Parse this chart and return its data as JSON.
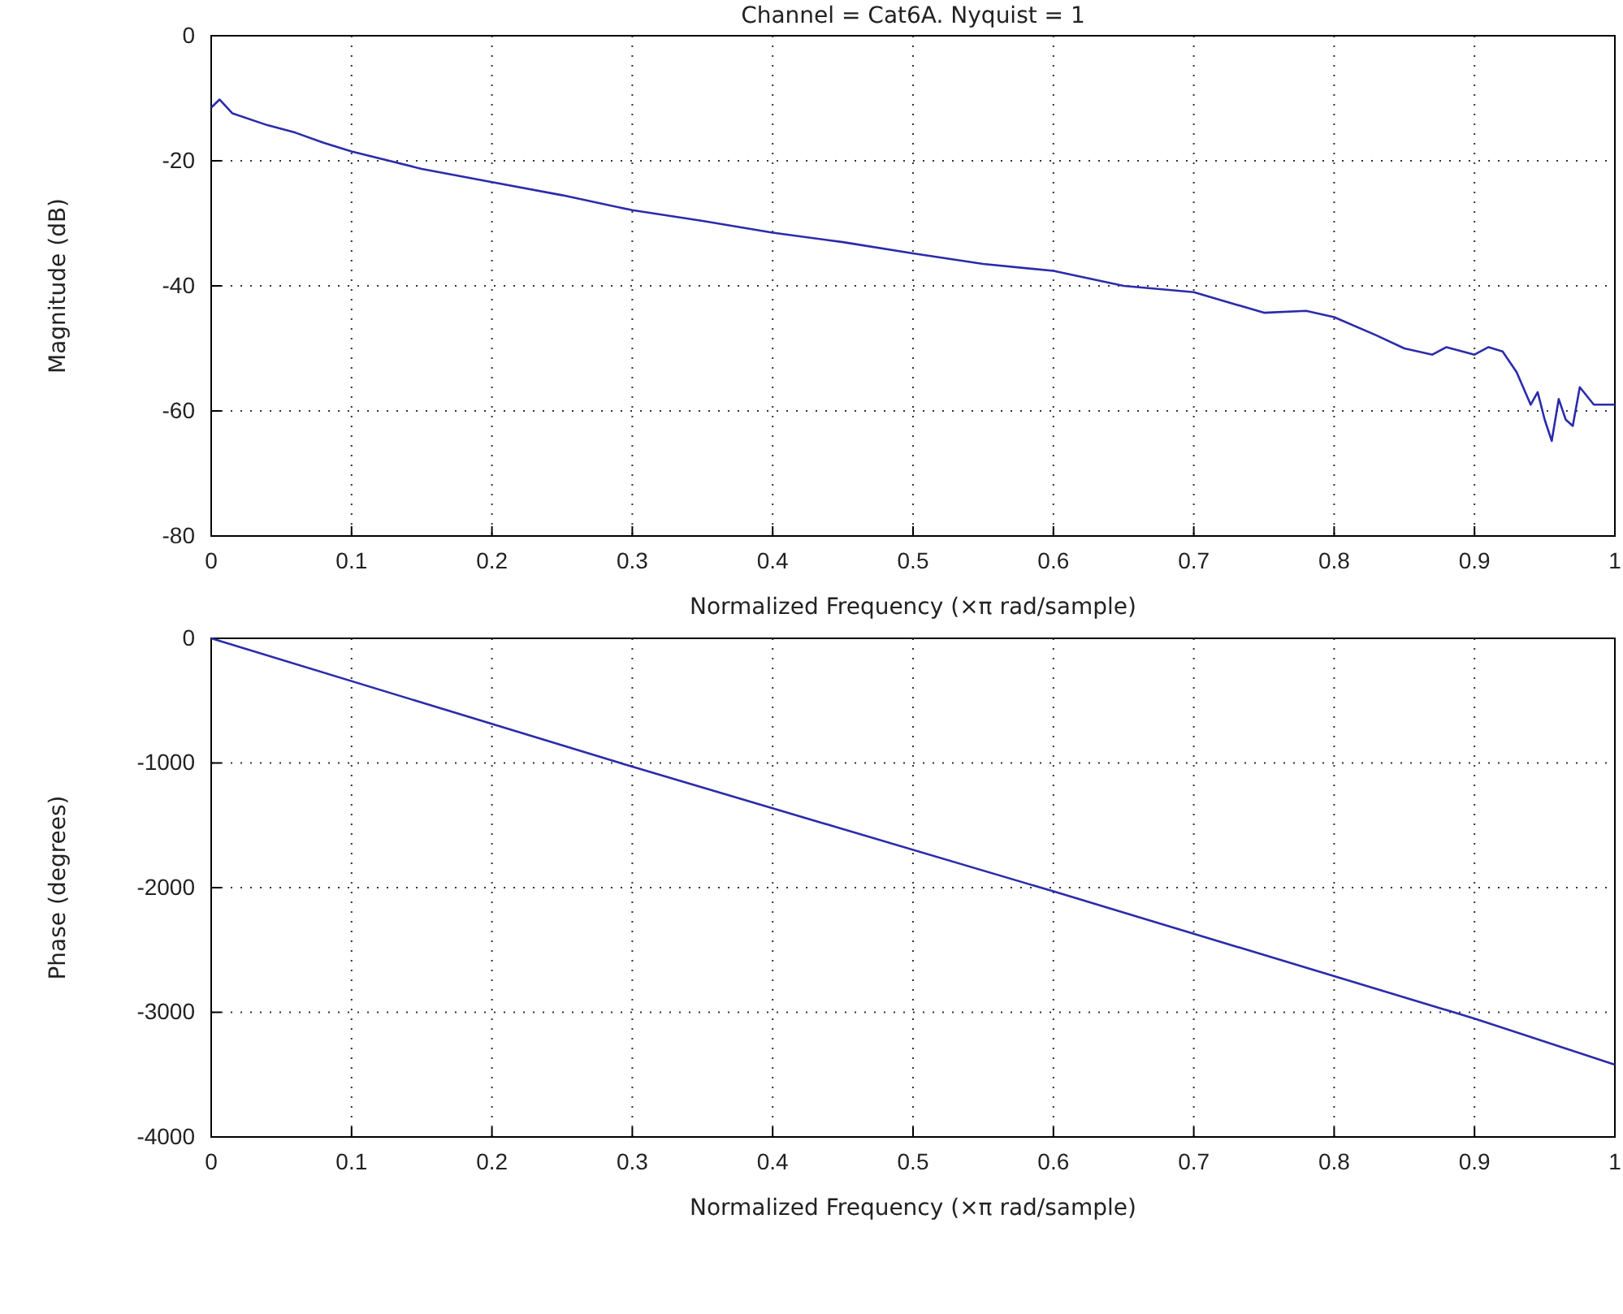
{
  "chart_data": [
    {
      "type": "line",
      "title": "Channel = Cat6A. Nyquist = 1",
      "xlabel": "Normalized Frequency  (×π rad/sample)",
      "ylabel": "Magnitude (dB)",
      "x": [
        0,
        0.006,
        0.015,
        0.04,
        0.06,
        0.08,
        0.1,
        0.15,
        0.2,
        0.25,
        0.3,
        0.35,
        0.4,
        0.45,
        0.5,
        0.55,
        0.6,
        0.65,
        0.7,
        0.75,
        0.78,
        0.8,
        0.83,
        0.85,
        0.87,
        0.88,
        0.9,
        0.91,
        0.92,
        0.93,
        0.94,
        0.945,
        0.95,
        0.955,
        0.96,
        0.965,
        0.97,
        0.975,
        0.985,
        1
      ],
      "series": [
        {
          "color": "#2b2bab",
          "values": [
            -11.5,
            -10.2,
            -12.4,
            -14.3,
            -15.5,
            -17.1,
            -18.5,
            -21.3,
            -23.4,
            -25.5,
            -27.9,
            -29.6,
            -31.5,
            -33,
            -34.8,
            -36.5,
            -37.6,
            -40,
            -41,
            -44.3,
            -44,
            -45,
            -47.9,
            -50,
            -51,
            -49.8,
            -51,
            -49.8,
            -50.5,
            -53.8,
            -59,
            -57,
            -61.4,
            -64.8,
            -58.1,
            -61.4,
            -62.4,
            -56.2,
            -59,
            -59
          ]
        }
      ],
      "xlim": [
        0,
        1
      ],
      "xticks": [
        0,
        0.1,
        0.2,
        0.3,
        0.4,
        0.5,
        0.6,
        0.7,
        0.8,
        0.9,
        1
      ],
      "ylim": [
        -80,
        0
      ],
      "yticks": [
        -80,
        -60,
        -40,
        -20,
        0
      ],
      "grid": true,
      "line_style": "solid"
    },
    {
      "type": "line",
      "xlabel": "Normalized Frequency  (×π rad/sample)",
      "ylabel": "Phase (degrees)",
      "x": [
        0,
        0.3,
        0.6,
        0.9,
        1
      ],
      "series": [
        {
          "color": "#2b2bab",
          "values": [
            0,
            -1030,
            -2030,
            -3050,
            -3420
          ]
        }
      ],
      "xlim": [
        0,
        1
      ],
      "xticks": [
        0,
        0.1,
        0.2,
        0.3,
        0.4,
        0.5,
        0.6,
        0.7,
        0.8,
        0.9,
        1
      ],
      "ylim": [
        -4000,
        0
      ],
      "yticks": [
        -4000,
        -3000,
        -2000,
        -1000,
        0
      ],
      "grid": true,
      "line_style": "solid"
    }
  ]
}
